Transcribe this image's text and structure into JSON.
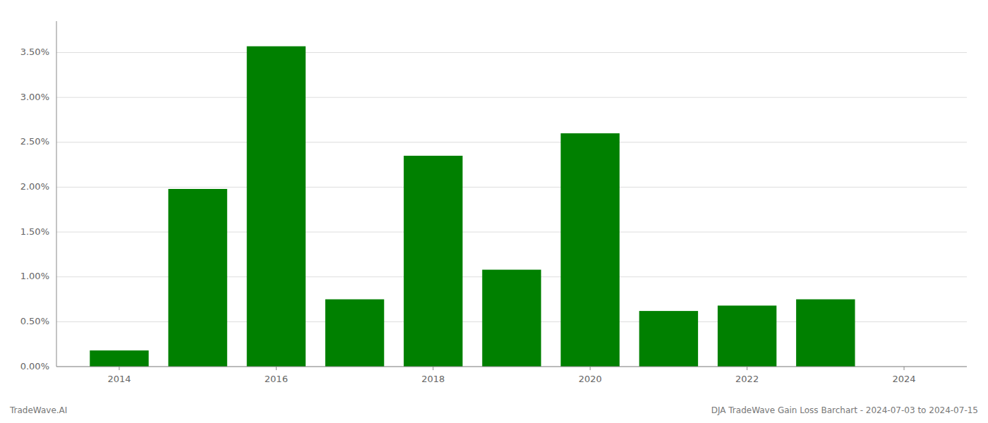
{
  "chart_data": {
    "type": "bar",
    "x": [
      2014,
      2015,
      2016,
      2017,
      2018,
      2019,
      2020,
      2021,
      2022,
      2023
    ],
    "values": [
      0.0018,
      0.0198,
      0.0357,
      0.0075,
      0.0235,
      0.0108,
      0.026,
      0.0062,
      0.0068,
      0.0075
    ],
    "color": "#008000",
    "xlim": [
      2013.2,
      2024.8
    ],
    "xticks": [
      2014,
      2016,
      2018,
      2020,
      2022,
      2024
    ],
    "ylim": [
      0.0,
      0.0385
    ],
    "yticks": [
      {
        "value": 0.0,
        "label": "0.00%"
      },
      {
        "value": 0.005,
        "label": "0.50%"
      },
      {
        "value": 0.01,
        "label": "1.00%"
      },
      {
        "value": 0.015,
        "label": "1.50%"
      },
      {
        "value": 0.02,
        "label": "2.00%"
      },
      {
        "value": 0.025,
        "label": "2.50%"
      },
      {
        "value": 0.03,
        "label": "3.00%"
      },
      {
        "value": 0.035,
        "label": "3.50%"
      }
    ],
    "grid": true,
    "annotations": [
      "TradeWave.AI",
      "DJA TradeWave Gain Loss Barchart - 2024-07-03 to 2024-07-15"
    ]
  }
}
